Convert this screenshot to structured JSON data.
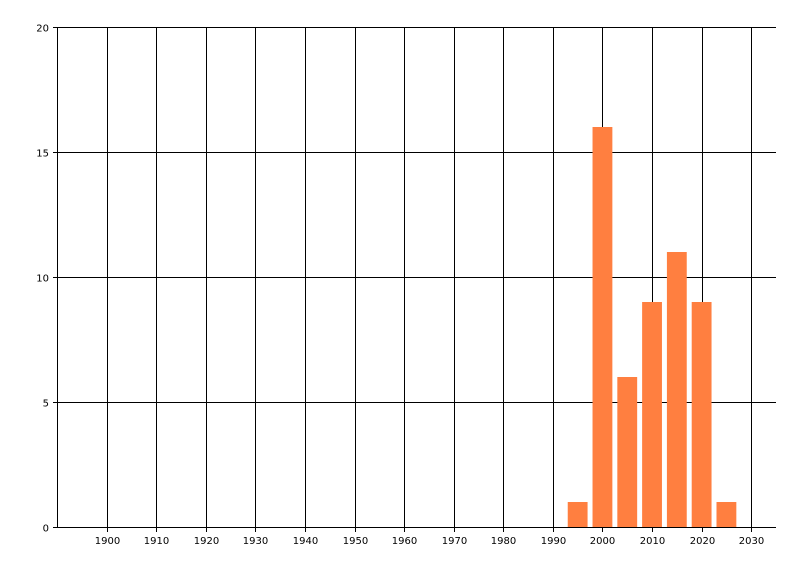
{
  "chart_data": {
    "type": "bar",
    "title": "",
    "xlabel": "",
    "ylabel": "",
    "x": [
      1995,
      2000,
      2005,
      2010,
      2015,
      2020,
      2025
    ],
    "values": [
      1,
      16,
      6,
      9,
      11,
      9,
      1
    ],
    "bar_width_years": 4,
    "xlim": [
      1890,
      2035
    ],
    "ylim": [
      0,
      20
    ],
    "x_ticks": [
      "1900",
      "1910",
      "1920",
      "1930",
      "1940",
      "1950",
      "1960",
      "1970",
      "1980",
      "1990",
      "2000",
      "2010",
      "2020",
      "2030"
    ],
    "y_ticks": [
      "0",
      "5",
      "10",
      "15",
      "20"
    ],
    "grid": true,
    "legend": "none",
    "bar_color": "#FF7F40",
    "grid_color": "#000000"
  }
}
